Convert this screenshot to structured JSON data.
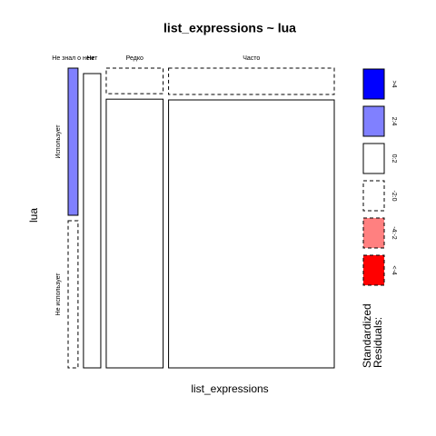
{
  "chart_data": {
    "type": "mosaic",
    "title": "list_expressions ~ lua",
    "x_label": "list_expressions",
    "y_label": "lua",
    "columns": [
      "Не знал о нем",
      "Нет",
      "Редко",
      "Часто"
    ],
    "rows": [
      "Использует",
      "Не использует"
    ],
    "cells": [
      [
        {
          "value": 2,
          "color": "#8080ff",
          "dashed": false
        },
        {
          "value": 2,
          "color": "#ffffff",
          "dashed": true
        }
      ],
      [
        {
          "value": 0,
          "color": "#ffffff",
          "dashed": true
        },
        {
          "value": 7,
          "color": "#ffffff",
          "dashed": false
        }
      ],
      [
        {
          "value": 2,
          "color": "#ffffff",
          "dashed": true
        },
        {
          "value": 21,
          "color": "#ffffff",
          "dashed": false
        }
      ],
      [
        {
          "value": 6,
          "color": "#ffffff",
          "dashed": true
        },
        {
          "value": 61,
          "color": "#ffffff",
          "dashed": false
        }
      ]
    ],
    "legend": {
      "title": [
        "Standardized",
        "Residuals:"
      ],
      "items": [
        {
          "label": ">4",
          "color": "#0000ff",
          "dashed": false
        },
        {
          "label": "2:4",
          "color": "#8080ff",
          "dashed": false
        },
        {
          "label": "0:2",
          "color": "#ffffff",
          "dashed": false
        },
        {
          "label": "-2:0",
          "color": "#ffffff",
          "dashed": true
        },
        {
          "label": "-4:-2",
          "color": "#ff8080",
          "dashed": true
        },
        {
          "label": "<-4",
          "color": "#ff0000",
          "dashed": true
        }
      ]
    }
  }
}
